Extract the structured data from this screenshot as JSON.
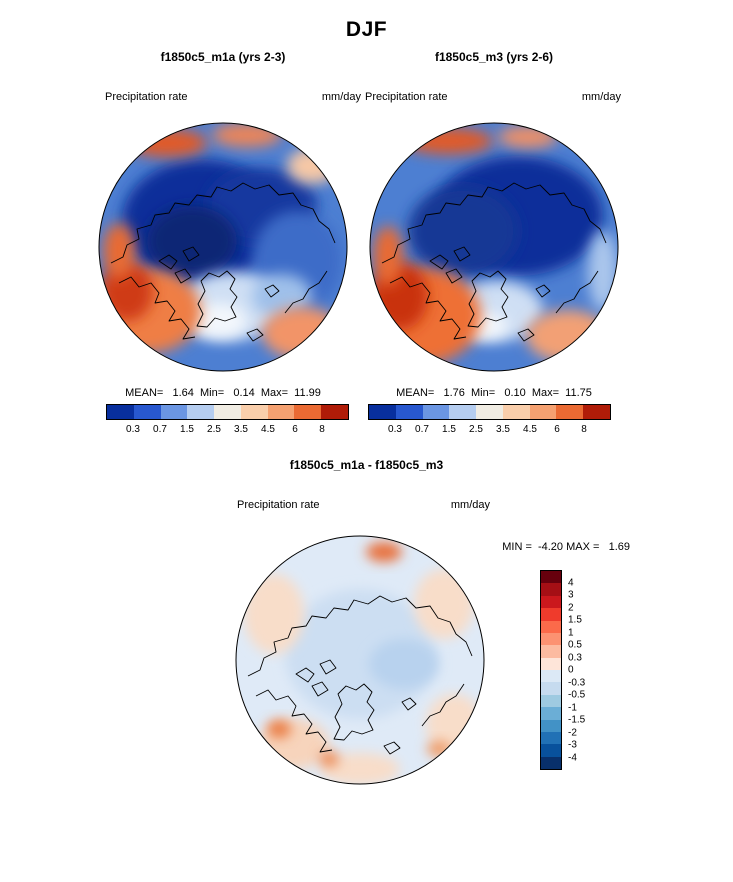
{
  "title": "DJF",
  "panels": [
    {
      "title": "f1850c5_m1a (yrs 2-3)",
      "field": "Precipitation rate",
      "units": "mm/day",
      "stats": "MEAN=   1.64  Min=   0.14  Max=  11.99"
    },
    {
      "title": "f1850c5_m3 (yrs 2-6)",
      "field": "Precipitation rate",
      "units": "mm/day",
      "stats": "MEAN=   1.76  Min=   0.10  Max=  11.75"
    }
  ],
  "diff": {
    "title": "f1850c5_m1a - f1850c5_m3",
    "field": "Precipitation rate",
    "units": "mm/day",
    "minmax": "MIN =  -4.20 MAX =   1.69"
  },
  "precip_colorbar": {
    "tick_labels": [
      "0.3",
      "0.7",
      "1.5",
      "2.5",
      "3.5",
      "4.5",
      "6",
      "8"
    ],
    "colors": [
      "#082f9e",
      "#2858cf",
      "#6b96e3",
      "#b5cdf0",
      "#f0ece3",
      "#f9ceab",
      "#f5a171",
      "#ea6a33",
      "#b01c08"
    ]
  },
  "diff_colorbar": {
    "tick_labels": [
      "4",
      "3",
      "2",
      "1.5",
      "1",
      "0.5",
      "0.3",
      "0",
      "-0.3",
      "-0.5",
      "-1",
      "-1.5",
      "-2",
      "-3",
      "-4"
    ],
    "colors": [
      "#67000d",
      "#a50f15",
      "#cb181d",
      "#ef3b2c",
      "#fb6a4a",
      "#fc9272",
      "#fcbba1",
      "#fee5d9",
      "#dce9f6",
      "#c6dbef",
      "#9ecae1",
      "#6baed6",
      "#4292c6",
      "#2171b5",
      "#08519c",
      "#08306b"
    ]
  },
  "chart_data": [
    {
      "type": "heatmap",
      "title": "f1850c5_m1a (yrs 2-3)",
      "season": "DJF",
      "variable": "Precipitation rate",
      "units": "mm/day",
      "projection": "north-polar-stereographic",
      "stats": {
        "mean": 1.64,
        "min": 0.14,
        "max": 11.99
      },
      "levels": [
        0.3,
        0.7,
        1.5,
        2.5,
        3.5,
        4.5,
        6,
        8
      ],
      "legend_position": "bottom"
    },
    {
      "type": "heatmap",
      "title": "f1850c5_m3 (yrs 2-6)",
      "season": "DJF",
      "variable": "Precipitation rate",
      "units": "mm/day",
      "projection": "north-polar-stereographic",
      "stats": {
        "mean": 1.76,
        "min": 0.1,
        "max": 11.75
      },
      "levels": [
        0.3,
        0.7,
        1.5,
        2.5,
        3.5,
        4.5,
        6,
        8
      ],
      "legend_position": "bottom"
    },
    {
      "type": "heatmap",
      "title": "f1850c5_m1a - f1850c5_m3",
      "season": "DJF",
      "variable": "Precipitation rate",
      "units": "mm/day",
      "projection": "north-polar-stereographic",
      "stats": {
        "min": -4.2,
        "max": 1.69
      },
      "levels": [
        -4,
        -3,
        -2,
        -1.5,
        -1,
        -0.5,
        -0.3,
        0,
        0.3,
        0.5,
        1,
        1.5,
        2,
        3,
        4
      ],
      "legend_position": "right"
    }
  ]
}
